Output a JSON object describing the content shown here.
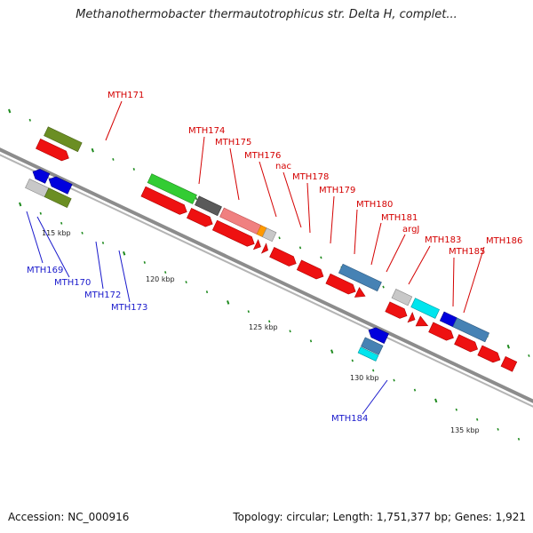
{
  "title": "Methanothermobacter thermautotrophicus str. Delta H, complet...",
  "footer": {
    "accession": "Accession: NC_000916",
    "topology": "Topology: circular; Length: 1,751,377 bp; Genes: 1,921"
  },
  "colors": {
    "forward_label": "#d40000",
    "reverse_label": "#1a1acc",
    "backbone": "#8c8c8c",
    "tick": "#1e8a1e"
  },
  "scale_labels": [
    "115 kbp",
    "120 kbp",
    "125 kbp",
    "130 kbp",
    "135 kbp"
  ],
  "forward_gene_labels": [
    "MTH171",
    "MTH174",
    "MTH175",
    "MTH176",
    "nac",
    "MTH178",
    "MTH179",
    "MTH180",
    "MTH181",
    "argJ",
    "MTH183",
    "MTH185",
    "MTH186"
  ],
  "reverse_gene_labels": [
    "MTH169",
    "MTH170",
    "MTH172",
    "MTH173",
    "MTH184"
  ]
}
